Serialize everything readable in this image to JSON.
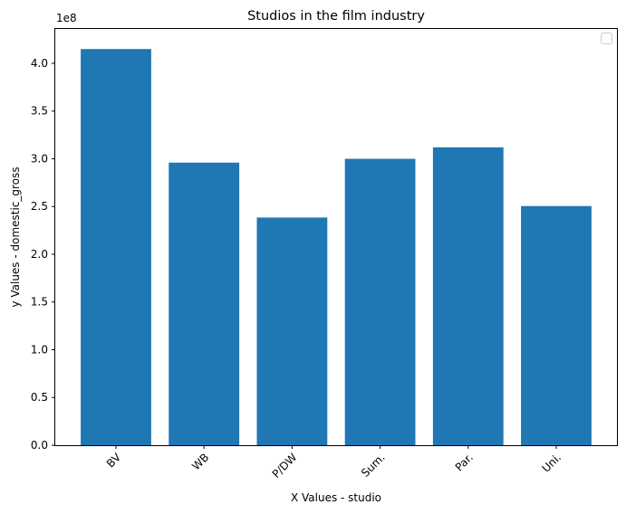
{
  "chart_data": {
    "type": "bar",
    "title": "Studios in the film industry",
    "xlabel": "X Values - studio",
    "ylabel": "y Values - domestic_gross",
    "y_offset_label": "1e8",
    "categories": [
      "BV",
      "WB",
      "P/DW",
      "Sum.",
      "Par.",
      "Uni."
    ],
    "values": [
      415000000,
      296000000,
      238500000,
      300000000,
      312000000,
      250500000
    ],
    "yticks": [
      "0.0",
      "0.5",
      "1.0",
      "1.5",
      "2.0",
      "2.5",
      "3.0",
      "3.5",
      "4.0"
    ],
    "ytick_values": [
      0,
      0.5,
      1.0,
      1.5,
      2.0,
      2.5,
      3.0,
      3.5,
      4.0
    ],
    "y_scale": 100000000,
    "ylim": [
      0,
      436000000
    ],
    "grid": false,
    "legend": {
      "placement": "top-right",
      "entries": []
    },
    "bar_color": "#1f77b4"
  }
}
